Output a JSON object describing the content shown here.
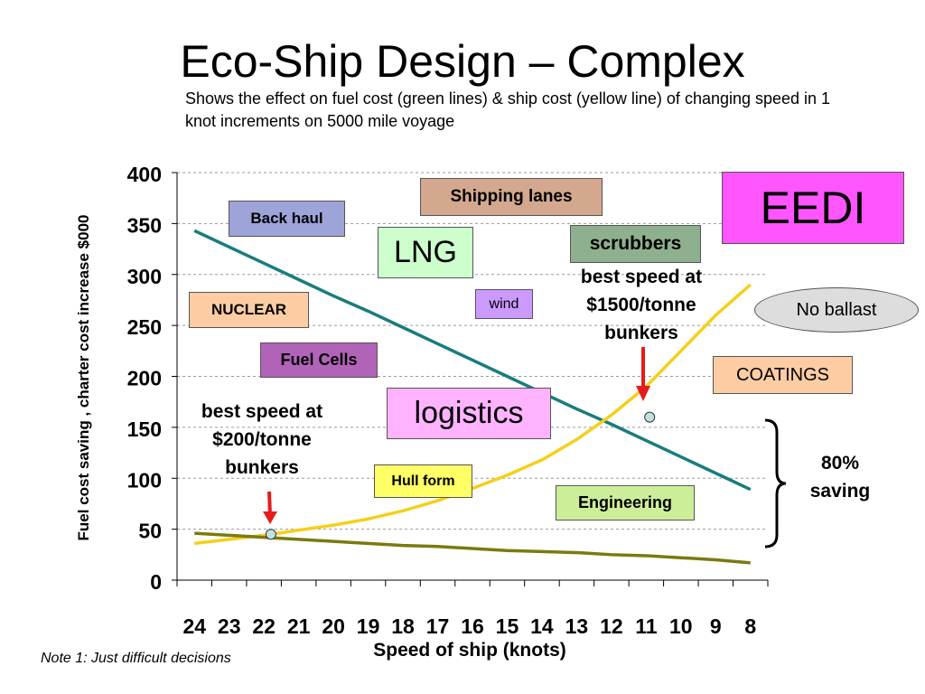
{
  "slide": {
    "title": "Eco-Ship Design – Complex",
    "subtitle": "Shows the effect on fuel cost (green lines) & ship cost (yellow line) of changing speed in 1 knot increments on 5000 mile voyage",
    "note": "Note 1: Just difficult decisions"
  },
  "labels": {
    "back_haul": "Back haul",
    "shipping_lanes": "Shipping lanes",
    "eedi": "EEDI",
    "lng": "LNG",
    "scrubbers": "scrubbers",
    "nuclear": "NUCLEAR",
    "wind": "wind",
    "no_ballast": "No ballast",
    "fuel_cells": "Fuel Cells",
    "coatings": "COATINGS",
    "logistics": "logistics",
    "hull_form": "Hull form",
    "engineering": "Engineering",
    "best_speed_low": "best speed at $200/tonne bunkers",
    "best_speed_high": "best speed at $1500/tonne bunkers",
    "saving": "80% saving"
  },
  "colors": {
    "fuel_high_line": "#1a7c7c",
    "fuel_low_line": "#7a7a10",
    "ship_cost_line": "#f5cf1a",
    "arrow": "#e41c1c",
    "back_haul": "#9ea3d8",
    "shipping_lanes": "#d3a88e",
    "eedi": "#ff55ff",
    "lng": "#ccffcc",
    "scrubbers": "#8fb08f",
    "nuclear": "#fccca2",
    "wind": "#cc99ff",
    "no_ballast": "#dddddd",
    "fuel_cells": "#b163b8",
    "coatings": "#fccca2",
    "logistics": "#ffb3ff",
    "hull_form": "#ffff66",
    "engineering": "#ccee99"
  },
  "chart_data": {
    "type": "line",
    "xlabel": "Speed of ship (knots)",
    "ylabel": "Fuel cost saving , charter cost increase $000",
    "x": [
      24,
      23,
      22,
      21,
      20,
      19,
      18,
      17,
      16,
      15,
      14,
      13,
      12,
      11,
      10,
      9,
      8
    ],
    "ylim": [
      0,
      400
    ],
    "yticks": [
      0,
      50,
      100,
      150,
      200,
      250,
      300,
      350,
      400
    ],
    "grid": "horizontal dashed",
    "series": [
      {
        "values": [
          343,
          327,
          311,
          295,
          279,
          264,
          248,
          232,
          216,
          200,
          184,
          168,
          153,
          137,
          121,
          105,
          89
        ]
      },
      {
        "values": [
          36,
          40,
          44,
          49,
          54,
          60,
          68,
          78,
          90,
          103,
          118,
          138,
          162,
          190,
          225,
          260,
          290
        ]
      },
      {
        "values": [
          46,
          44,
          42,
          40,
          38,
          36,
          34,
          33,
          31,
          29,
          28,
          27,
          25,
          24,
          22,
          20,
          17
        ]
      }
    ],
    "markers": [
      {
        "x": 21.8,
        "y": 45
      },
      {
        "x": 10.9,
        "y": 160
      }
    ]
  }
}
